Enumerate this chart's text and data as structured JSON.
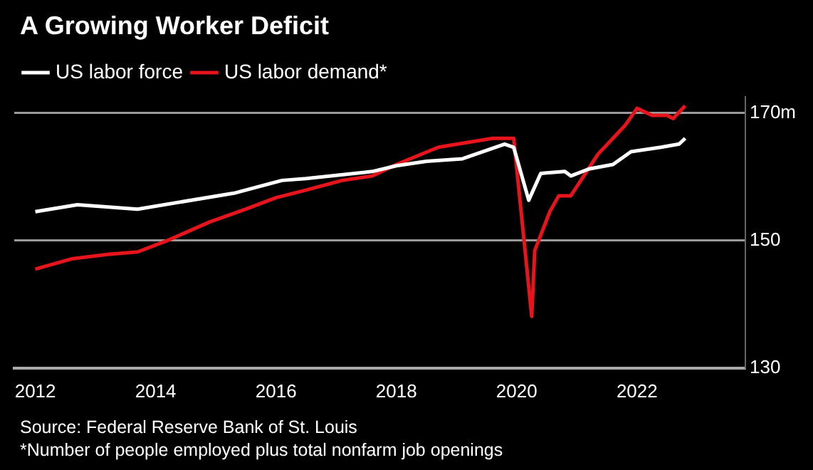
{
  "chart_data": {
    "type": "line",
    "title": "A Growing Worker Deficit",
    "annotations": [
      "Source: Federal Reserve Bank of St. Louis",
      "*Number of people employed plus total nonfarm job openings"
    ],
    "series": [
      {
        "name": "US labor force",
        "color": "#ffffff",
        "x": [
          2012,
          2012.7,
          2013.7,
          2015.3,
          2016.1,
          2016.5,
          2017.6,
          2018.0,
          2018.5,
          2019.1,
          2019.8,
          2019.95,
          2020.2,
          2020.4,
          2020.8,
          2020.9,
          2021.2,
          2021.6,
          2021.9,
          2022.4,
          2022.7,
          2022.8
        ],
        "values": [
          154.5,
          155.6,
          154.9,
          157.4,
          159.4,
          159.7,
          160.8,
          161.7,
          162.4,
          162.8,
          165.1,
          164.6,
          156.3,
          160.5,
          160.8,
          160.1,
          161.2,
          161.9,
          163.9,
          164.6,
          165.1,
          166.0
        ]
      },
      {
        "name": "US labor demand*",
        "color": "#e8141c",
        "x": [
          2012,
          2012.6,
          2013.2,
          2013.7,
          2014.2,
          2014.9,
          2015.5,
          2016.0,
          2016.5,
          2017.1,
          2017.6,
          2018.0,
          2018.7,
          2019.6,
          2019.95,
          2020.25,
          2020.3,
          2020.55,
          2020.7,
          2020.9,
          2021.35,
          2021.8,
          2022.0,
          2022.25,
          2022.5,
          2022.6,
          2022.8
        ],
        "values": [
          145.5,
          147.1,
          147.8,
          148.2,
          150.0,
          152.9,
          154.9,
          156.7,
          157.9,
          159.4,
          160.1,
          161.9,
          164.6,
          166.0,
          166.0,
          138.1,
          148.4,
          154.5,
          157.0,
          157.0,
          163.5,
          168.0,
          170.7,
          169.6,
          169.6,
          169.1,
          171.1
        ]
      }
    ],
    "xlim": [
      2011.65,
      2023.8
    ],
    "xticks": [
      2012,
      2014,
      2016,
      2018,
      2020,
      2022
    ],
    "ylim": [
      130,
      172.5
    ],
    "yticks": [
      130,
      150,
      {
        "value": 170,
        "label": "170m"
      }
    ],
    "grid": "y",
    "legend": "top left",
    "marker": "none",
    "line_style": "solid"
  }
}
